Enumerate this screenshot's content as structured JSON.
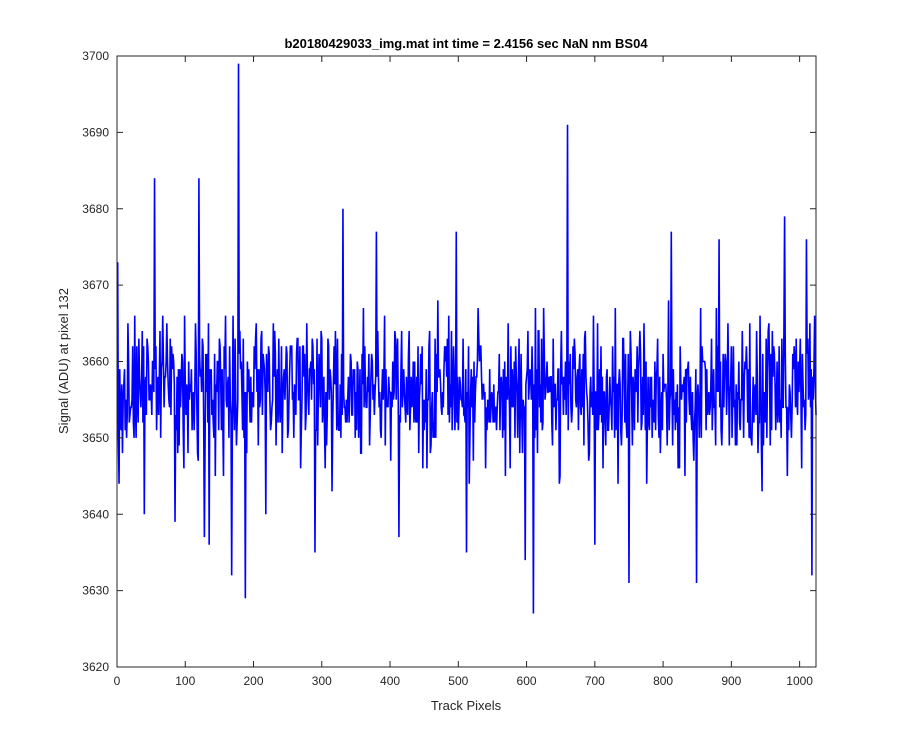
{
  "chart_data": {
    "type": "line",
    "title": "b20180429033_img.mat int time = 2.4156 sec  NaN nm BS04",
    "xlabel": "Track Pixels",
    "ylabel": "Signal (ADU) at pixel 132",
    "xlim": [
      0,
      1024
    ],
    "ylim": [
      3620,
      3700
    ],
    "xticks": [
      0,
      100,
      200,
      300,
      400,
      500,
      600,
      700,
      800,
      900,
      1000
    ],
    "yticks": [
      3620,
      3630,
      3640,
      3650,
      3660,
      3670,
      3680,
      3690,
      3700
    ],
    "grid": false,
    "series_color": "#0000ff",
    "series": [
      {
        "color": "#0000ff",
        "baseline": 3656,
        "noise_half_range": 9,
        "x_range": [
          1,
          1024
        ],
        "notable_points": [
          {
            "x": 1,
            "y": 3673
          },
          {
            "x": 3,
            "y": 3644
          },
          {
            "x": 40,
            "y": 3640
          },
          {
            "x": 55,
            "y": 3684
          },
          {
            "x": 85,
            "y": 3639
          },
          {
            "x": 120,
            "y": 3684
          },
          {
            "x": 128,
            "y": 3637
          },
          {
            "x": 135,
            "y": 3636
          },
          {
            "x": 168,
            "y": 3632
          },
          {
            "x": 178,
            "y": 3699
          },
          {
            "x": 188,
            "y": 3629
          },
          {
            "x": 218,
            "y": 3640
          },
          {
            "x": 290,
            "y": 3635
          },
          {
            "x": 315,
            "y": 3643
          },
          {
            "x": 331,
            "y": 3680
          },
          {
            "x": 380,
            "y": 3677
          },
          {
            "x": 413,
            "y": 3637
          },
          {
            "x": 497,
            "y": 3677
          },
          {
            "x": 512,
            "y": 3635
          },
          {
            "x": 598,
            "y": 3634
          },
          {
            "x": 610,
            "y": 3627
          },
          {
            "x": 660,
            "y": 3691
          },
          {
            "x": 700,
            "y": 3636
          },
          {
            "x": 750,
            "y": 3631
          },
          {
            "x": 812,
            "y": 3677
          },
          {
            "x": 849,
            "y": 3631
          },
          {
            "x": 882,
            "y": 3676
          },
          {
            "x": 945,
            "y": 3643
          },
          {
            "x": 978,
            "y": 3679
          },
          {
            "x": 1010,
            "y": 3676
          },
          {
            "x": 1018,
            "y": 3632
          },
          {
            "x": 1022,
            "y": 3666
          }
        ]
      }
    ]
  }
}
